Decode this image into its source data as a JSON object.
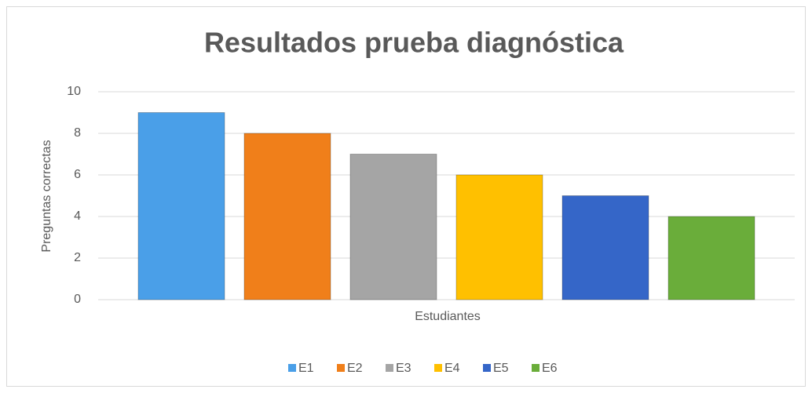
{
  "chart_data": {
    "type": "bar",
    "title": "Resultados prueba diagnóstica",
    "x_label": "Estudiantes",
    "y_label": "Preguntas correctas",
    "series": [
      {
        "name": "E1",
        "color": "#4a9fe8",
        "values": [
          9
        ]
      },
      {
        "name": "E2",
        "color": "#f07f1a",
        "values": [
          8
        ]
      },
      {
        "name": "E3",
        "color": "#a5a5a5",
        "values": [
          7
        ]
      },
      {
        "name": "E4",
        "color": "#ffc000",
        "values": [
          6
        ]
      },
      {
        "name": "E5",
        "color": "#3566c8",
        "values": [
          5
        ]
      },
      {
        "name": "E6",
        "color": "#6aad3a",
        "values": [
          4
        ]
      }
    ],
    "ylim": [
      0,
      10
    ],
    "yticks": [
      0,
      2,
      4,
      6,
      8,
      10
    ],
    "grid": true,
    "legend": "bottom"
  }
}
